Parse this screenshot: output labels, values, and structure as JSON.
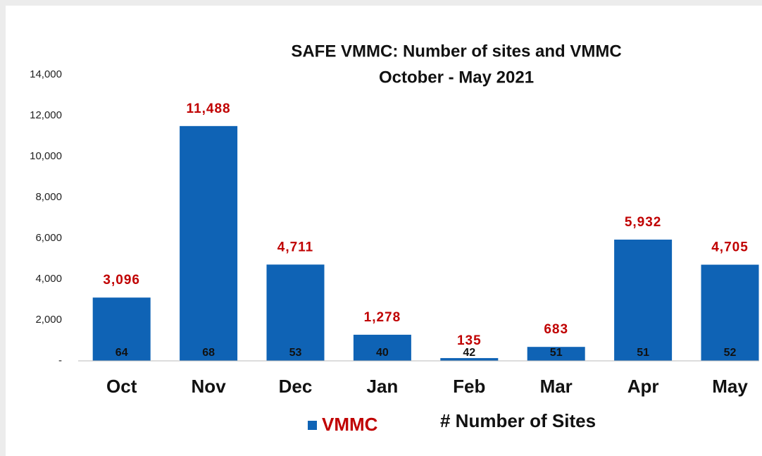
{
  "chart_data": {
    "type": "bar",
    "title": "SAFE VMMC: Number of sites and VMMC",
    "subtitle": "October - May 2021",
    "categories": [
      "Oct",
      "Nov",
      "Dec",
      "Jan",
      "Feb",
      "Mar",
      "Apr",
      "May"
    ],
    "series": [
      {
        "name": "VMMC",
        "color": "#0f63b5",
        "values": [
          3096,
          11488,
          4711,
          1278,
          135,
          683,
          5932,
          4705
        ],
        "value_labels": [
          "3,096",
          "11,488",
          "4,711",
          "1,278",
          "135",
          "683",
          "5,932",
          "4,705"
        ]
      },
      {
        "name": "# Number of Sites",
        "color": "#111111",
        "values": [
          64,
          68,
          53,
          40,
          42,
          51,
          51,
          52
        ]
      }
    ],
    "ylim": [
      0,
      14000
    ],
    "yticks": [
      {
        "value": 0,
        "label": "-"
      },
      {
        "value": 2000,
        "label": "2,000"
      },
      {
        "value": 4000,
        "label": "4,000"
      },
      {
        "value": 6000,
        "label": "6,000"
      },
      {
        "value": 8000,
        "label": "8,000"
      },
      {
        "value": 10000,
        "label": "10,000"
      },
      {
        "value": 12000,
        "label": "12,000"
      },
      {
        "value": 14000,
        "label": "14,000"
      }
    ],
    "grid": false
  }
}
